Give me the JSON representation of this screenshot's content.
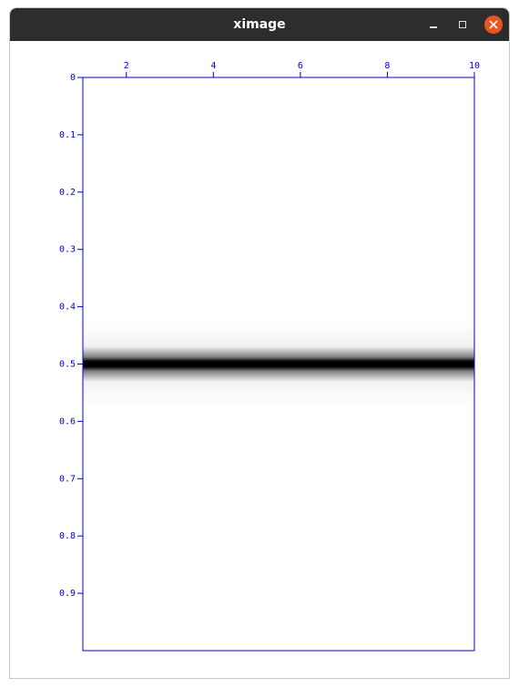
{
  "window": {
    "title": "ximage"
  },
  "icons": {
    "minimize": "minimize-icon",
    "maximize": "maximize-icon",
    "close": "close-icon"
  },
  "colors": {
    "axis": "#0000cc",
    "band": "#000000",
    "close_button": "#e95420",
    "titlebar": "#2d2d2d"
  },
  "chart_data": {
    "type": "heatmap",
    "title": "",
    "xlabel": "",
    "ylabel": "",
    "x_ticks": [
      2,
      4,
      6,
      8,
      10
    ],
    "x_tick_labels": [
      "2",
      "4",
      "6",
      "8",
      "10"
    ],
    "xlim": [
      1,
      10
    ],
    "y_ticks": [
      0,
      0.1,
      0.2,
      0.3,
      0.4,
      0.5,
      0.6,
      0.7,
      0.8,
      0.9
    ],
    "y_tick_labels": [
      "0",
      "0.1",
      "0.2",
      "0.3",
      "0.4",
      "0.5",
      "0.6",
      "0.7",
      "0.8",
      "0.9"
    ],
    "ylim": [
      0,
      1
    ],
    "y_inverted": true,
    "grid": false,
    "band": {
      "center_y": 0.5,
      "half_width_y": 0.035,
      "value": "black"
    }
  }
}
